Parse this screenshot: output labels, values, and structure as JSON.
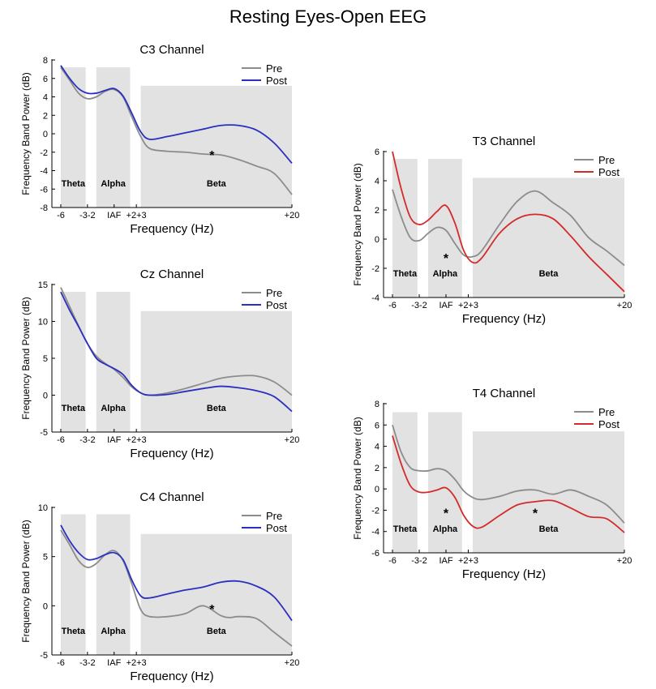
{
  "figure_title": "Resting Eyes-Open EEG",
  "colors": {
    "pre": "#8c8c8c",
    "post_blue": "#2a2fc0",
    "post_red": "#d42a2a",
    "band": "#e2e2e2"
  },
  "chart_data": [
    {
      "type": "line",
      "title": "C3 Channel",
      "xlabel": "Frequency (Hz)",
      "ylabel": "Frequency Band Power (dB)",
      "xlim": [
        -7,
        20
      ],
      "ylim": [
        -8,
        8
      ],
      "y_ticks": [
        "-8",
        "-6",
        "-4",
        "-2",
        "0",
        "2",
        "4",
        "6",
        "8"
      ],
      "x_ticks": [
        {
          "x": -6,
          "label": "-6"
        },
        {
          "x": -3,
          "label": "-3-2"
        },
        {
          "x": 0,
          "label": "IAF"
        },
        {
          "x": 2.5,
          "label": "+2+3"
        },
        {
          "x": 20,
          "label": "+20"
        }
      ],
      "bands": [
        {
          "name": "Theta",
          "x0": -6,
          "x1": -3.2,
          "top": 7.2
        },
        {
          "name": "Alpha",
          "x0": -2,
          "x1": 1.8,
          "top": 7.2
        },
        {
          "name": "Beta",
          "x0": 3,
          "x1": 20,
          "top": 5.2
        }
      ],
      "post_color": "#2a2fc0",
      "series": [
        {
          "name": "Pre",
          "x": [
            -6,
            -5,
            -4,
            -3,
            -2,
            -1,
            0,
            1,
            2,
            3,
            4,
            6,
            8,
            10,
            12,
            14,
            16,
            18,
            20
          ],
          "values": [
            7.2,
            5.8,
            4.4,
            3.8,
            4.0,
            4.6,
            4.8,
            4.0,
            1.8,
            -0.3,
            -1.6,
            -1.9,
            -2.0,
            -2.2,
            -2.3,
            -2.8,
            -3.5,
            -4.3,
            -6.6
          ]
        },
        {
          "name": "Post",
          "x": [
            -6,
            -5,
            -4,
            -3,
            -2,
            -1,
            0,
            1,
            2,
            3,
            4,
            6,
            8,
            10,
            12,
            14,
            16,
            18,
            20
          ],
          "values": [
            7.4,
            6.0,
            4.9,
            4.4,
            4.4,
            4.7,
            4.9,
            4.1,
            2.2,
            0.2,
            -0.6,
            -0.3,
            0.1,
            0.5,
            0.9,
            0.9,
            0.4,
            -1.0,
            -3.2
          ]
        }
      ],
      "annotations": [
        {
          "text": "*",
          "x": 11,
          "y": -2.8
        }
      ]
    },
    {
      "type": "line",
      "title": "Cz Channel",
      "xlabel": "Frequency (Hz)",
      "ylabel": "Frequency Band Power (dB)",
      "xlim": [
        -7,
        20
      ],
      "ylim": [
        -5,
        15
      ],
      "y_ticks": [
        "-5",
        "0",
        "5",
        "10",
        "15"
      ],
      "x_ticks": [
        {
          "x": -6,
          "label": "-6"
        },
        {
          "x": -3,
          "label": "-3-2"
        },
        {
          "x": 0,
          "label": "IAF"
        },
        {
          "x": 2.5,
          "label": "+2+3"
        },
        {
          "x": 20,
          "label": "+20"
        }
      ],
      "bands": [
        {
          "name": "Theta",
          "x0": -6,
          "x1": -3.2,
          "top": 14
        },
        {
          "name": "Alpha",
          "x0": -2,
          "x1": 1.8,
          "top": 14
        },
        {
          "name": "Beta",
          "x0": 3,
          "x1": 20,
          "top": 11.4
        }
      ],
      "post_color": "#2a2fc0",
      "series": [
        {
          "name": "Pre",
          "x": [
            -6,
            -5,
            -4,
            -3,
            -2,
            -1,
            0,
            1,
            2,
            3,
            4,
            6,
            8,
            10,
            12,
            14,
            16,
            18,
            20
          ],
          "values": [
            14.6,
            12.0,
            9.4,
            7.0,
            5.3,
            4.3,
            3.5,
            2.4,
            1.1,
            0.3,
            0.0,
            0.3,
            0.9,
            1.6,
            2.3,
            2.6,
            2.6,
            1.8,
            0.0
          ]
        },
        {
          "name": "Post",
          "x": [
            -6,
            -5,
            -4,
            -3,
            -2,
            -1,
            0,
            1,
            2,
            3,
            4,
            6,
            8,
            10,
            12,
            14,
            16,
            18,
            20
          ],
          "values": [
            14.0,
            11.5,
            9.3,
            7.0,
            5.0,
            4.2,
            3.6,
            2.8,
            1.3,
            0.3,
            0.0,
            0.1,
            0.5,
            0.9,
            1.2,
            1.0,
            0.6,
            -0.2,
            -2.2
          ]
        }
      ],
      "annotations": []
    },
    {
      "type": "line",
      "title": "C4 Channel",
      "xlabel": "Frequency (Hz)",
      "ylabel": "Frequency Band Power (dB)",
      "xlim": [
        -7,
        20
      ],
      "ylim": [
        -5,
        10
      ],
      "y_ticks": [
        "-5",
        "0",
        "5",
        "10"
      ],
      "x_ticks": [
        {
          "x": -6,
          "label": "-6"
        },
        {
          "x": -3,
          "label": "-3-2"
        },
        {
          "x": 0,
          "label": "IAF"
        },
        {
          "x": 2.5,
          "label": "+2+3"
        },
        {
          "x": 20,
          "label": "+20"
        }
      ],
      "bands": [
        {
          "name": "Theta",
          "x0": -6,
          "x1": -3.2,
          "top": 9.3
        },
        {
          "name": "Alpha",
          "x0": -2,
          "x1": 1.8,
          "top": 9.3
        },
        {
          "name": "Beta",
          "x0": 3,
          "x1": 20,
          "top": 7.3
        }
      ],
      "post_color": "#2a2fc0",
      "series": [
        {
          "name": "Pre",
          "x": [
            -6,
            -5,
            -4,
            -3,
            -2,
            -1,
            0,
            1,
            2,
            3,
            4,
            6,
            8,
            10,
            12,
            13,
            14,
            16,
            18,
            20
          ],
          "values": [
            7.7,
            6.2,
            4.6,
            3.9,
            4.3,
            5.2,
            5.6,
            4.6,
            2.2,
            -0.4,
            -1.1,
            -1.1,
            -0.8,
            0.0,
            -1.0,
            -1.2,
            -1.1,
            -1.3,
            -2.7,
            -4.1
          ]
        },
        {
          "name": "Post",
          "x": [
            -6,
            -5,
            -4,
            -3,
            -2,
            -1,
            0,
            1,
            2,
            3,
            4,
            6,
            8,
            10,
            12,
            14,
            16,
            18,
            20
          ],
          "values": [
            8.2,
            6.6,
            5.4,
            4.7,
            4.8,
            5.2,
            5.4,
            4.7,
            2.6,
            1.0,
            0.8,
            1.2,
            1.6,
            1.9,
            2.4,
            2.5,
            2.0,
            0.9,
            -1.5
          ]
        }
      ],
      "annotations": [
        {
          "text": "*",
          "x": 11,
          "y": -0.8
        }
      ]
    },
    {
      "type": "line",
      "title": "T3 Channel",
      "xlabel": "Frequency (Hz)",
      "ylabel": "Frequency Band Power (dB)",
      "xlim": [
        -7,
        20
      ],
      "ylim": [
        -4,
        6
      ],
      "y_ticks": [
        "-4",
        "-2",
        "0",
        "2",
        "4",
        "6"
      ],
      "x_ticks": [
        {
          "x": -6,
          "label": "-6"
        },
        {
          "x": -3,
          "label": "-3-2"
        },
        {
          "x": 0,
          "label": "IAF"
        },
        {
          "x": 2.5,
          "label": "+2+3"
        },
        {
          "x": 20,
          "label": "+20"
        }
      ],
      "bands": [
        {
          "name": "Theta",
          "x0": -6,
          "x1": -3.2,
          "top": 5.5
        },
        {
          "name": "Alpha",
          "x0": -2,
          "x1": 1.8,
          "top": 5.5
        },
        {
          "name": "Beta",
          "x0": 3,
          "x1": 20,
          "top": 4.2
        }
      ],
      "post_color": "#d42a2a",
      "series": [
        {
          "name": "Pre",
          "x": [
            -6,
            -5,
            -4,
            -3,
            -2,
            -1,
            0,
            1,
            2,
            3,
            4,
            6,
            8,
            10,
            12,
            14,
            16,
            18,
            20
          ],
          "values": [
            3.4,
            1.5,
            0.1,
            -0.1,
            0.4,
            0.8,
            0.6,
            -0.3,
            -1.1,
            -1.2,
            -0.8,
            1.0,
            2.6,
            3.3,
            2.5,
            1.6,
            0.1,
            -0.8,
            -1.8
          ]
        },
        {
          "name": "Post",
          "x": [
            -6,
            -5,
            -4,
            -3,
            -2,
            -1,
            0,
            1,
            2,
            3,
            4,
            6,
            8,
            10,
            12,
            14,
            16,
            18,
            20
          ],
          "values": [
            6.0,
            3.4,
            1.5,
            1.0,
            1.3,
            1.9,
            2.3,
            1.1,
            -0.8,
            -1.6,
            -1.3,
            0.4,
            1.4,
            1.7,
            1.4,
            0.2,
            -1.2,
            -2.4,
            -3.6
          ]
        }
      ],
      "annotations": [
        {
          "text": "*",
          "x": 0,
          "y": -1.6
        }
      ]
    },
    {
      "type": "line",
      "title": "T4 Channel",
      "xlabel": "Frequency (Hz)",
      "ylabel": "Frequency Band Power (dB)",
      "xlim": [
        -7,
        20
      ],
      "ylim": [
        -6,
        8
      ],
      "y_ticks": [
        "-6",
        "-4",
        "-2",
        "0",
        "2",
        "4",
        "6",
        "8"
      ],
      "x_ticks": [
        {
          "x": -6,
          "label": "-6"
        },
        {
          "x": -3,
          "label": "-3-2"
        },
        {
          "x": 0,
          "label": "IAF"
        },
        {
          "x": 2.5,
          "label": "+2+3"
        },
        {
          "x": 20,
          "label": "+20"
        }
      ],
      "bands": [
        {
          "name": "Theta",
          "x0": -6,
          "x1": -3.2,
          "top": 7.2
        },
        {
          "name": "Alpha",
          "x0": -2,
          "x1": 1.8,
          "top": 7.2
        },
        {
          "name": "Beta",
          "x0": 3,
          "x1": 20,
          "top": 5.4
        }
      ],
      "post_color": "#d42a2a",
      "series": [
        {
          "name": "Pre",
          "x": [
            -6,
            -5,
            -4,
            -3,
            -2,
            -1,
            0,
            1,
            2,
            3,
            4,
            6,
            8,
            10,
            12,
            14,
            16,
            18,
            20
          ],
          "values": [
            6.0,
            3.4,
            2.0,
            1.7,
            1.7,
            1.9,
            1.7,
            0.9,
            -0.2,
            -0.8,
            -1.0,
            -0.7,
            -0.2,
            -0.1,
            -0.5,
            -0.1,
            -0.7,
            -1.5,
            -3.2
          ]
        },
        {
          "name": "Post",
          "x": [
            -6,
            -5,
            -4,
            -3,
            -2,
            -1,
            0,
            1,
            2,
            3,
            4,
            6,
            8,
            10,
            12,
            14,
            16,
            18,
            20
          ],
          "values": [
            5.0,
            2.3,
            0.3,
            -0.3,
            -0.3,
            -0.1,
            0.1,
            -0.8,
            -2.5,
            -3.5,
            -3.6,
            -2.5,
            -1.5,
            -1.2,
            -1.1,
            -1.8,
            -2.6,
            -2.8,
            -4.1
          ]
        }
      ],
      "annotations": [
        {
          "text": "*",
          "x": 0,
          "y": -2.7
        },
        {
          "text": "*",
          "x": 10,
          "y": -2.7
        }
      ]
    }
  ]
}
